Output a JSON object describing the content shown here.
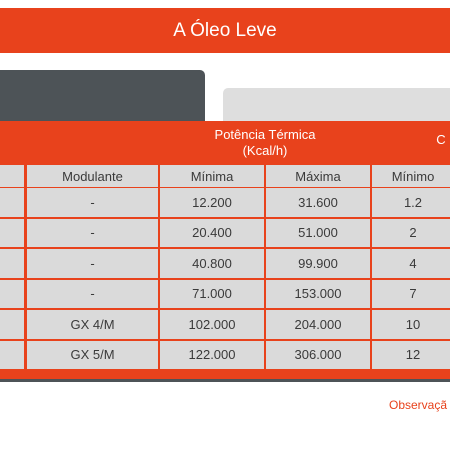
{
  "header": {
    "title": "A Óleo Leve"
  },
  "table": {
    "group_headers": [
      {
        "label": "Potência Térmica\n(Kcal/h)"
      },
      {
        "label": "C"
      }
    ],
    "columns": [
      "",
      "Modulante",
      "Mínima",
      "Máxima",
      "Mínimo",
      ""
    ],
    "rows": [
      [
        "",
        "-",
        "12.200",
        "31.600",
        "1.2",
        ""
      ],
      [
        "",
        "-",
        "20.400",
        "51.000",
        "2",
        ""
      ],
      [
        "",
        "-",
        "40.800",
        "99.900",
        "4",
        ""
      ],
      [
        "",
        "-",
        "71.000",
        "153.000",
        "7",
        ""
      ],
      [
        "",
        "GX 4/M",
        "102.000",
        "204.000",
        "10",
        ""
      ],
      [
        "",
        "GX 5/M",
        "122.000",
        "306.000",
        "12",
        ""
      ]
    ]
  },
  "footer": {
    "observation_label": "Observaçã"
  },
  "colors": {
    "accent": "#e8421c",
    "tab_dark": "#4d5357",
    "cell_bg": "#dadada"
  }
}
